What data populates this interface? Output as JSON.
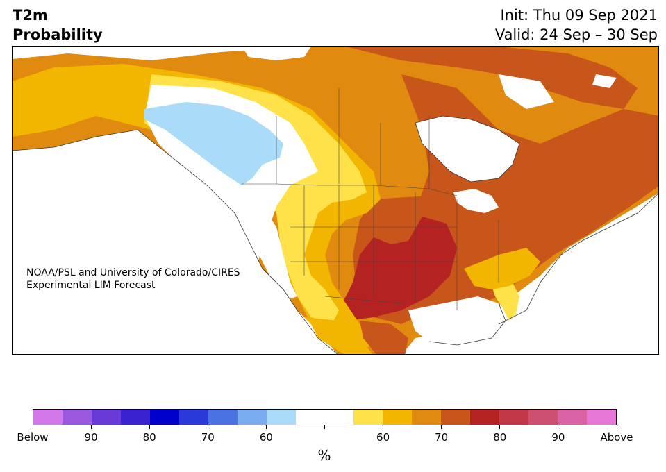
{
  "header": {
    "title_line1": "T2m",
    "title_line2": "Probability",
    "init": "Init: Thu 09 Sep 2021",
    "valid": "Valid: 24 Sep – 30 Sep"
  },
  "map": {
    "region": "North America",
    "credit_line1": "NOAA/PSL and University of Colorado/CIRES",
    "credit_line2": "Experimental LIM Forecast"
  },
  "colorbar": {
    "unit": "%",
    "colors": [
      "#d378e8",
      "#9b59e0",
      "#6a3ad8",
      "#3a22d0",
      "#0000cc",
      "#2a3ad8",
      "#4a72e0",
      "#7aacf0",
      "#aadcfa",
      "#ffffff",
      "#ffffff",
      "#ffe24a",
      "#f2b500",
      "#e08a10",
      "#c8561a",
      "#b42222",
      "#c23848",
      "#cc5070",
      "#d862a4",
      "#e878d8"
    ],
    "tick_labels": [
      "Below",
      "90",
      "80",
      "70",
      "60",
      "",
      "60",
      "70",
      "80",
      "90",
      "Above"
    ]
  },
  "palette": {
    "land_white": "#ffffff",
    "ocean": "#ffffff",
    "light_blue": "#aadcfa",
    "yellow": "#ffe24a",
    "gold": "#f2b500",
    "orange": "#e08a10",
    "dark_orange": "#c8561a",
    "red": "#b42222",
    "pink": "#c23848"
  }
}
